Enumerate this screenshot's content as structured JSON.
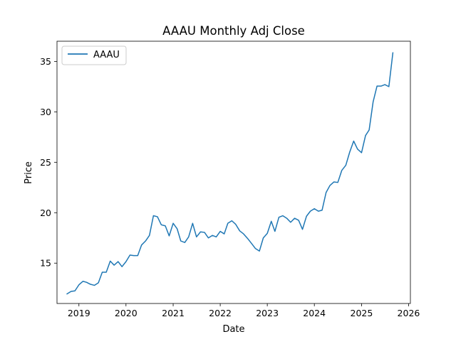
{
  "chart_data": {
    "type": "line",
    "title": "AAAU Monthly Adj Close",
    "xlabel": "Date",
    "ylabel": "Price",
    "x_ticks": [
      "2019",
      "2020",
      "2021",
      "2022",
      "2023",
      "2024",
      "2025",
      "2026"
    ],
    "y_ticks": [
      "15",
      "20",
      "25",
      "30",
      "35"
    ],
    "xlim": [
      "2018-07-15",
      "2026-01-15"
    ],
    "ylim": [
      11.0,
      37.0
    ],
    "grid": false,
    "legend": {
      "position": "top-left",
      "entries": [
        "AAAU"
      ]
    },
    "series": [
      {
        "name": "AAAU",
        "color": "#1f77b4",
        "x": [
          "2018-10-01",
          "2018-11-01",
          "2018-12-01",
          "2019-01-01",
          "2019-02-01",
          "2019-03-01",
          "2019-04-01",
          "2019-05-01",
          "2019-06-01",
          "2019-07-01",
          "2019-08-01",
          "2019-09-01",
          "2019-10-01",
          "2019-11-01",
          "2019-12-01",
          "2020-01-01",
          "2020-02-01",
          "2020-03-01",
          "2020-04-01",
          "2020-05-01",
          "2020-06-01",
          "2020-07-01",
          "2020-08-01",
          "2020-09-01",
          "2020-10-01",
          "2020-11-01",
          "2020-12-01",
          "2021-01-01",
          "2021-02-01",
          "2021-03-01",
          "2021-04-01",
          "2021-05-01",
          "2021-06-01",
          "2021-07-01",
          "2021-08-01",
          "2021-09-01",
          "2021-10-01",
          "2021-11-01",
          "2021-12-01",
          "2022-01-01",
          "2022-02-01",
          "2022-03-01",
          "2022-04-01",
          "2022-05-01",
          "2022-06-01",
          "2022-07-01",
          "2022-08-01",
          "2022-09-01",
          "2022-10-01",
          "2022-11-01",
          "2022-12-01",
          "2023-01-01",
          "2023-02-01",
          "2023-03-01",
          "2023-04-01",
          "2023-05-01",
          "2023-06-01",
          "2023-07-01",
          "2023-08-01",
          "2023-09-01",
          "2023-10-01",
          "2023-11-01",
          "2023-12-01",
          "2024-01-01",
          "2024-02-01",
          "2024-03-01",
          "2024-04-01",
          "2024-05-01",
          "2024-06-01",
          "2024-07-01",
          "2024-08-01",
          "2024-09-01",
          "2024-10-01",
          "2024-11-01",
          "2024-12-01",
          "2025-01-01",
          "2025-02-01",
          "2025-03-01",
          "2025-04-01",
          "2025-05-01",
          "2025-06-01",
          "2025-07-01",
          "2025-08-01",
          "2025-09-01"
        ],
        "y": [
          11.95,
          12.2,
          12.25,
          12.85,
          13.2,
          13.1,
          12.9,
          12.8,
          13.05,
          14.1,
          14.1,
          15.2,
          14.8,
          15.15,
          14.65,
          15.15,
          15.8,
          15.75,
          15.75,
          16.8,
          17.2,
          17.75,
          19.7,
          19.6,
          18.8,
          18.7,
          17.7,
          18.95,
          18.4,
          17.2,
          17.05,
          17.6,
          18.95,
          17.6,
          18.1,
          18.05,
          17.5,
          17.75,
          17.6,
          18.15,
          17.9,
          18.95,
          19.2,
          18.85,
          18.2,
          17.9,
          17.45,
          16.95,
          16.45,
          16.2,
          17.5,
          17.95,
          19.15,
          18.15,
          19.55,
          19.7,
          19.45,
          19.05,
          19.45,
          19.25,
          18.35,
          19.65,
          20.15,
          20.4,
          20.15,
          20.25,
          22.0,
          22.7,
          23.05,
          23.0,
          24.2,
          24.7,
          26.0,
          27.1,
          26.3,
          25.95,
          27.65,
          28.2,
          31.0,
          32.55,
          32.55,
          32.7,
          32.5,
          35.85
        ]
      }
    ]
  }
}
